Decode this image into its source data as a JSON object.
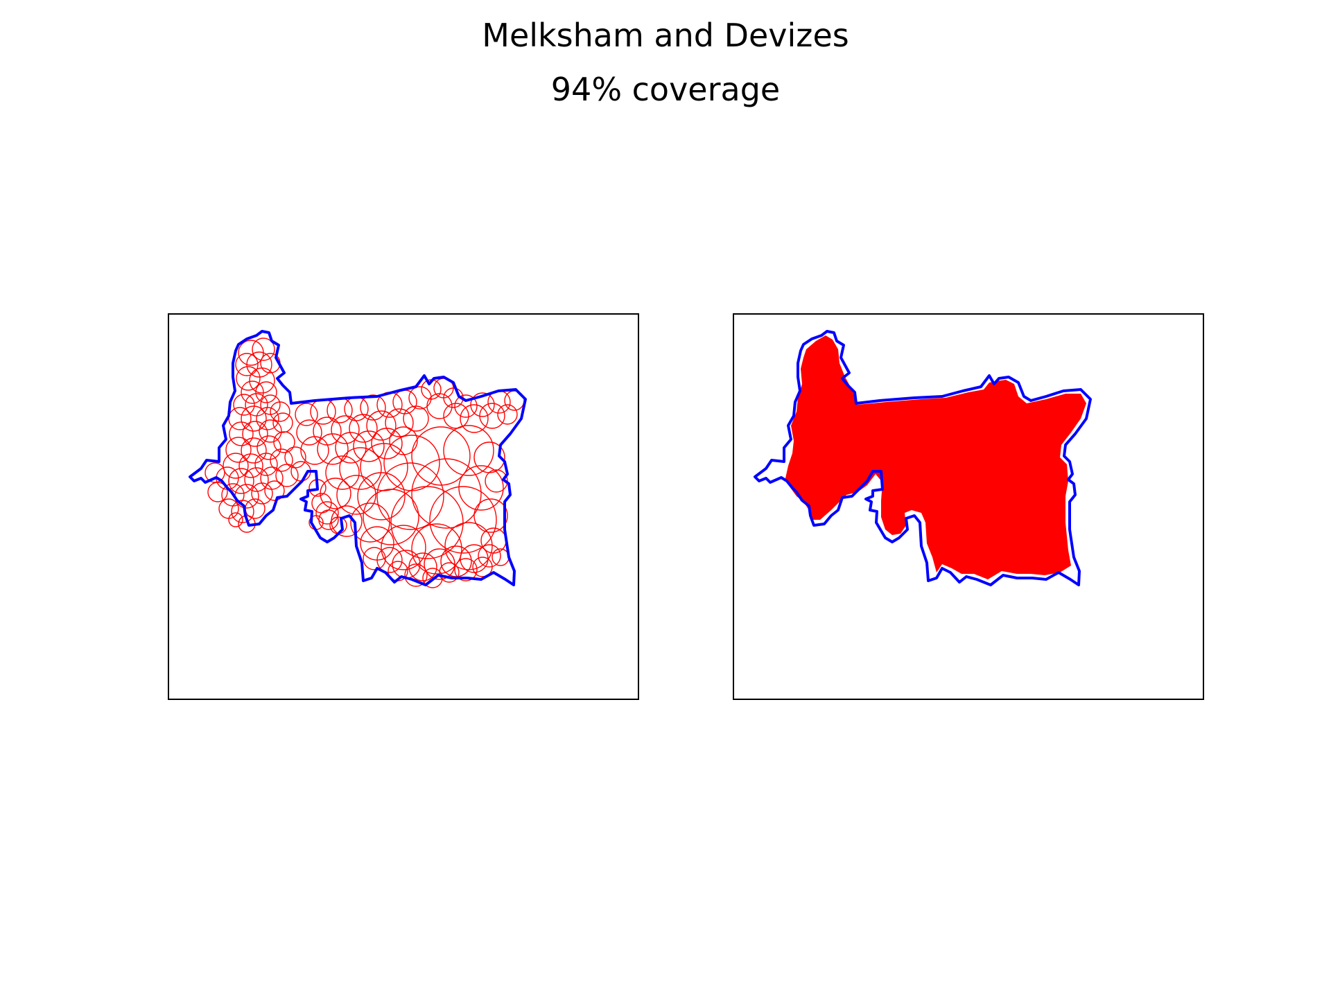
{
  "figure": {
    "title": "Melksham and Devizes",
    "subtitle": "94% coverage"
  },
  "colors": {
    "boundary": "#0000ff",
    "coverage": "#ff0000",
    "frame": "#000000",
    "background": "#ffffff"
  },
  "panels": [
    {
      "view": "circle outlines"
    },
    {
      "view": "filled coverage"
    }
  ]
}
